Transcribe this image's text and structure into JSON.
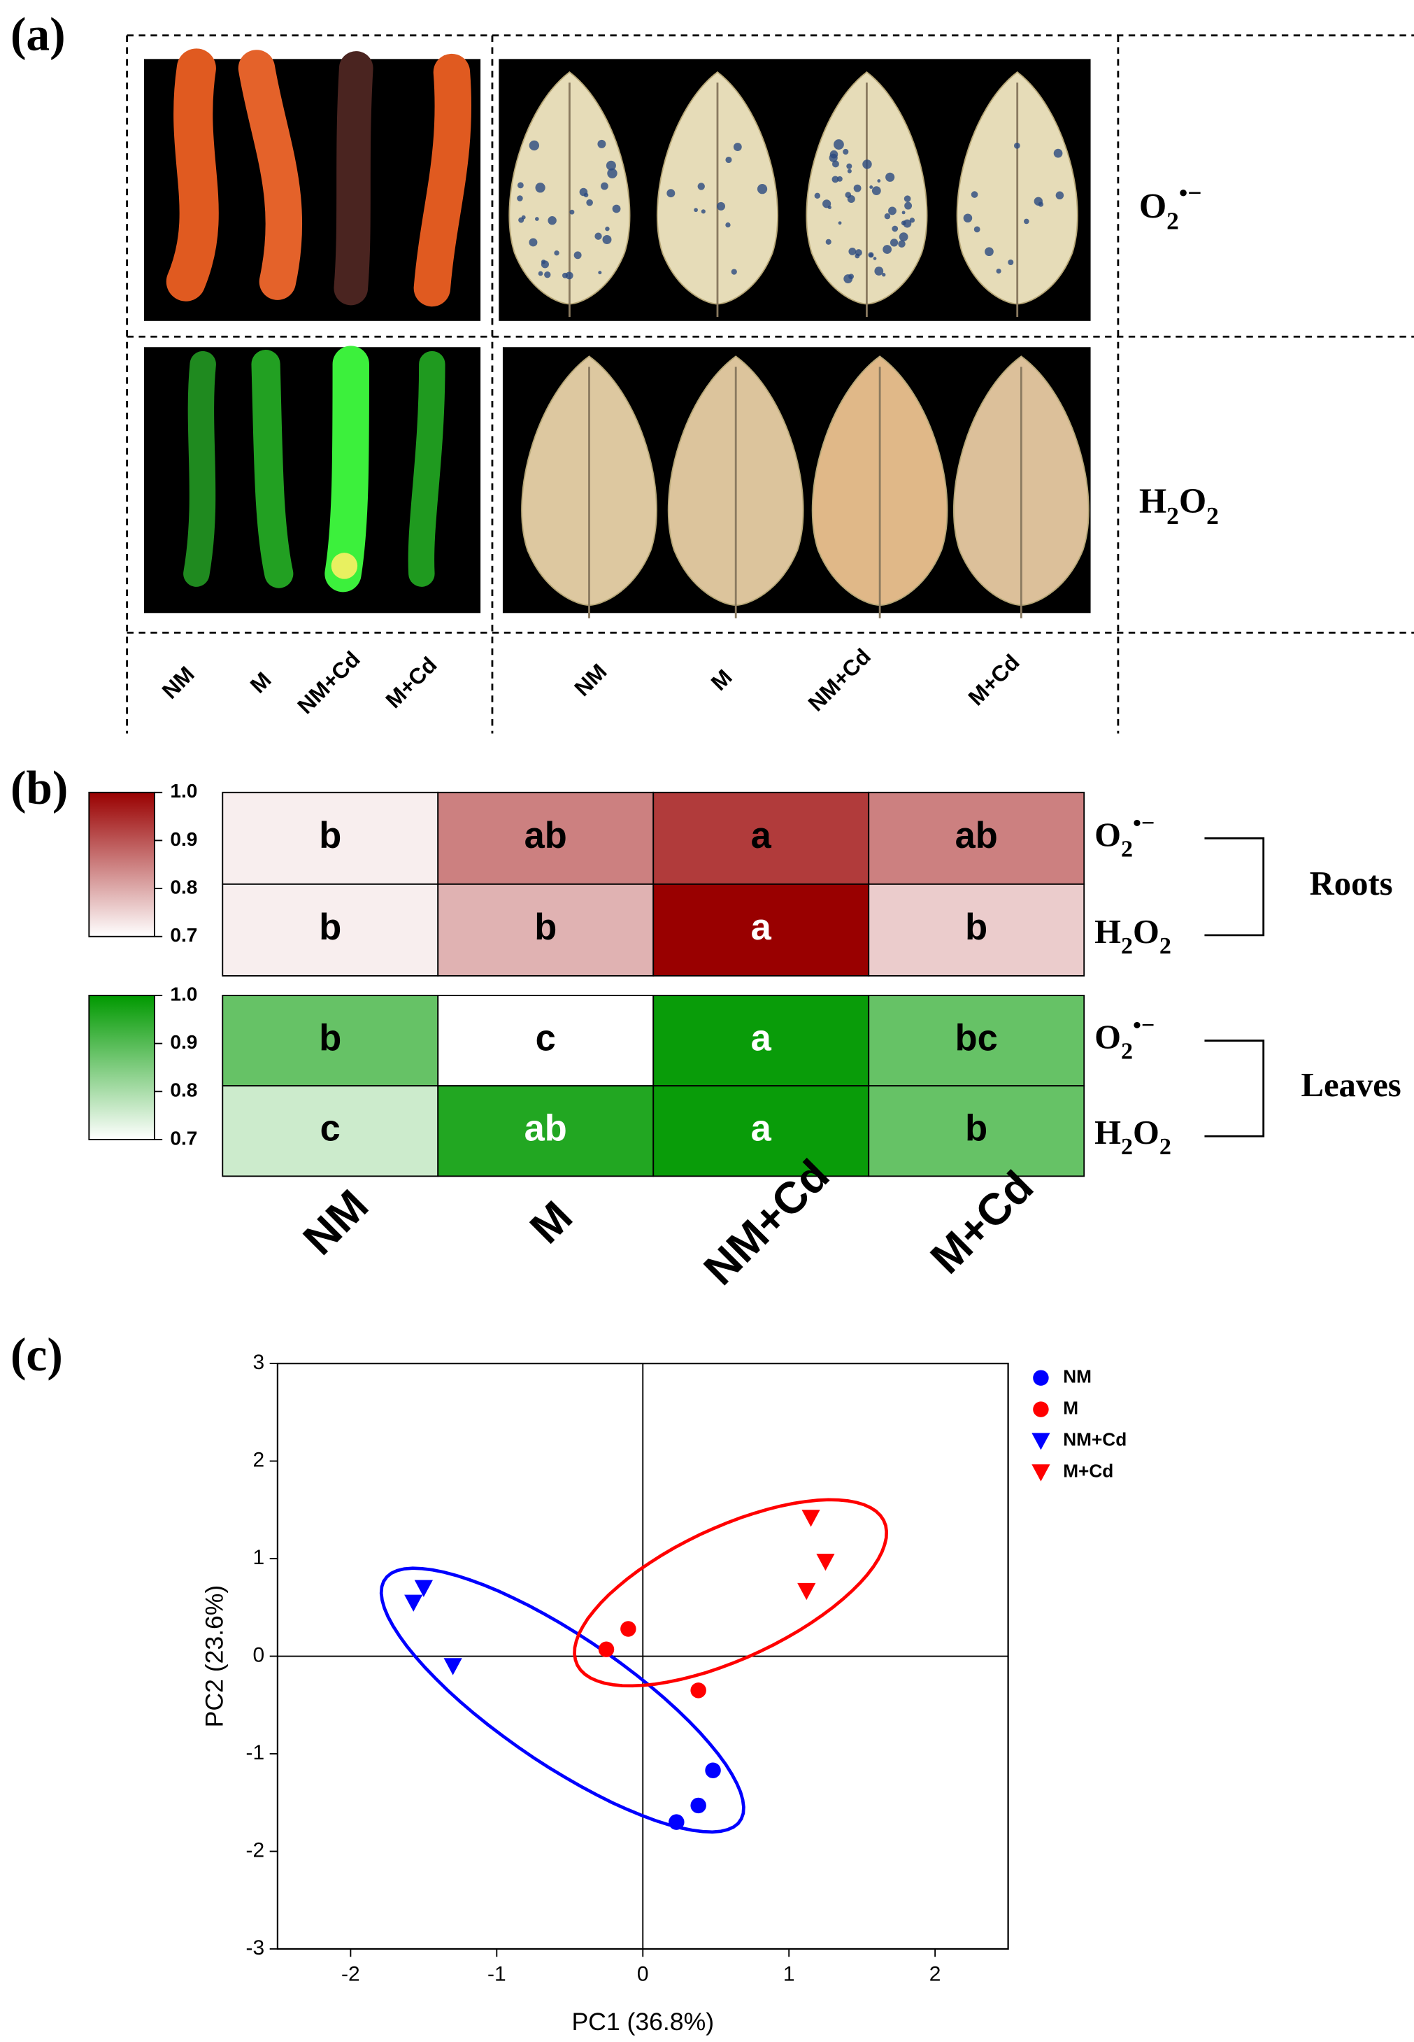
{
  "panel_a": {
    "label": "(a)",
    "species": [
      [
        {
          "text": "O"
        },
        {
          "text": "2",
          "pos": "sub"
        },
        {
          "text": "•−",
          "pos": "sup"
        }
      ],
      [
        {
          "text": "H"
        },
        {
          "text": "2",
          "pos": "sub"
        },
        {
          "text": "O"
        },
        {
          "text": "2",
          "pos": "sub"
        }
      ]
    ],
    "root_categories": [
      "NM",
      "M",
      "NM+Cd",
      "M+Cd"
    ],
    "leaf_categories": [
      "NM",
      "M",
      "NM+Cd",
      "M+Cd"
    ]
  },
  "chart_data": [
    {
      "type": "heatmap",
      "label": "(b)",
      "categories": [
        "NM",
        "M",
        "NM+Cd",
        "M+Cd"
      ],
      "clim": [
        0.7,
        1
      ],
      "cticks": [
        0.7,
        0.8,
        0.9,
        {
          "value": 1,
          "label": "1.0"
        }
      ],
      "blocks": [
        {
          "name": "Roots",
          "color_low": "#ffffff",
          "color_high": "#990000",
          "rows": [
            [
              {
                "text": "O"
              },
              {
                "text": "2",
                "pos": "sub"
              },
              {
                "text": "•−",
                "pos": "sup"
              }
            ],
            [
              {
                "text": "H"
              },
              {
                "text": "2",
                "pos": "sub"
              },
              {
                "text": "O"
              },
              {
                "text": "2",
                "pos": "sub"
              }
            ]
          ],
          "values": [
            [
              0.72,
              0.85,
              0.93,
              0.85
            ],
            [
              0.72,
              0.79,
              1.0,
              0.76
            ]
          ],
          "letters": [
            [
              "b",
              "ab",
              "a",
              "ab"
            ],
            [
              "b",
              "b",
              "a",
              "b"
            ]
          ]
        },
        {
          "name": "Leaves",
          "color_low": "#ffffff",
          "color_high": "#009900",
          "rows": [
            [
              {
                "text": "O"
              },
              {
                "text": "2",
                "pos": "sub"
              },
              {
                "text": "•−",
                "pos": "sup"
              }
            ],
            [
              {
                "text": "H"
              },
              {
                "text": "2",
                "pos": "sub"
              },
              {
                "text": "O"
              },
              {
                "text": "2",
                "pos": "sub"
              }
            ]
          ],
          "values": [
            [
              0.88,
              0.7,
              0.99,
              0.88
            ],
            [
              0.76,
              0.96,
              0.99,
              0.88
            ]
          ],
          "letters": [
            [
              "b",
              "c",
              "a",
              "bc"
            ],
            [
              "c",
              "ab",
              "a",
              "b"
            ]
          ]
        }
      ]
    },
    {
      "type": "scatter",
      "label": "(c)",
      "x_label": "PC1 (36.8%)",
      "y_label": "PC2 (23.6%)",
      "xlim": [
        -2.5,
        2.5
      ],
      "ylim": [
        -3,
        3
      ],
      "xticks": [
        -2,
        -1,
        0,
        1,
        2
      ],
      "yticks": [
        -3,
        -2,
        -1,
        0,
        1,
        2,
        3
      ],
      "legend": "top-right",
      "series": [
        {
          "name": "NM",
          "color": "#0000ff",
          "marker": "circle",
          "x": [
            0.48,
            0.38,
            0.23
          ],
          "values": [
            -1.17,
            -1.53,
            -1.7
          ]
        },
        {
          "name": "M",
          "color": "#ff0000",
          "marker": "circle",
          "x": [
            -0.1,
            -0.25,
            0.38
          ],
          "values": [
            0.28,
            0.07,
            -0.35
          ]
        },
        {
          "name": "NM+Cd",
          "color": "#0000ff",
          "marker": "triangle-down",
          "x": [
            -1.5,
            -1.57,
            -1.3
          ],
          "values": [
            0.7,
            0.55,
            -0.1
          ]
        },
        {
          "name": "M+Cd",
          "color": "#ff0000",
          "marker": "triangle-down",
          "x": [
            1.15,
            1.25,
            1.12
          ],
          "values": [
            1.42,
            0.97,
            0.67
          ]
        }
      ],
      "ellipses": [
        {
          "color": "#0000ff",
          "center": [
            -0.55,
            -0.45
          ],
          "semi_axes": [
            1.75,
            0.55
          ],
          "angle": -48
        },
        {
          "color": "#ff0000",
          "center": [
            0.6,
            0.65
          ],
          "semi_axes": [
            1.3,
            0.6
          ],
          "angle": 40
        }
      ]
    }
  ]
}
